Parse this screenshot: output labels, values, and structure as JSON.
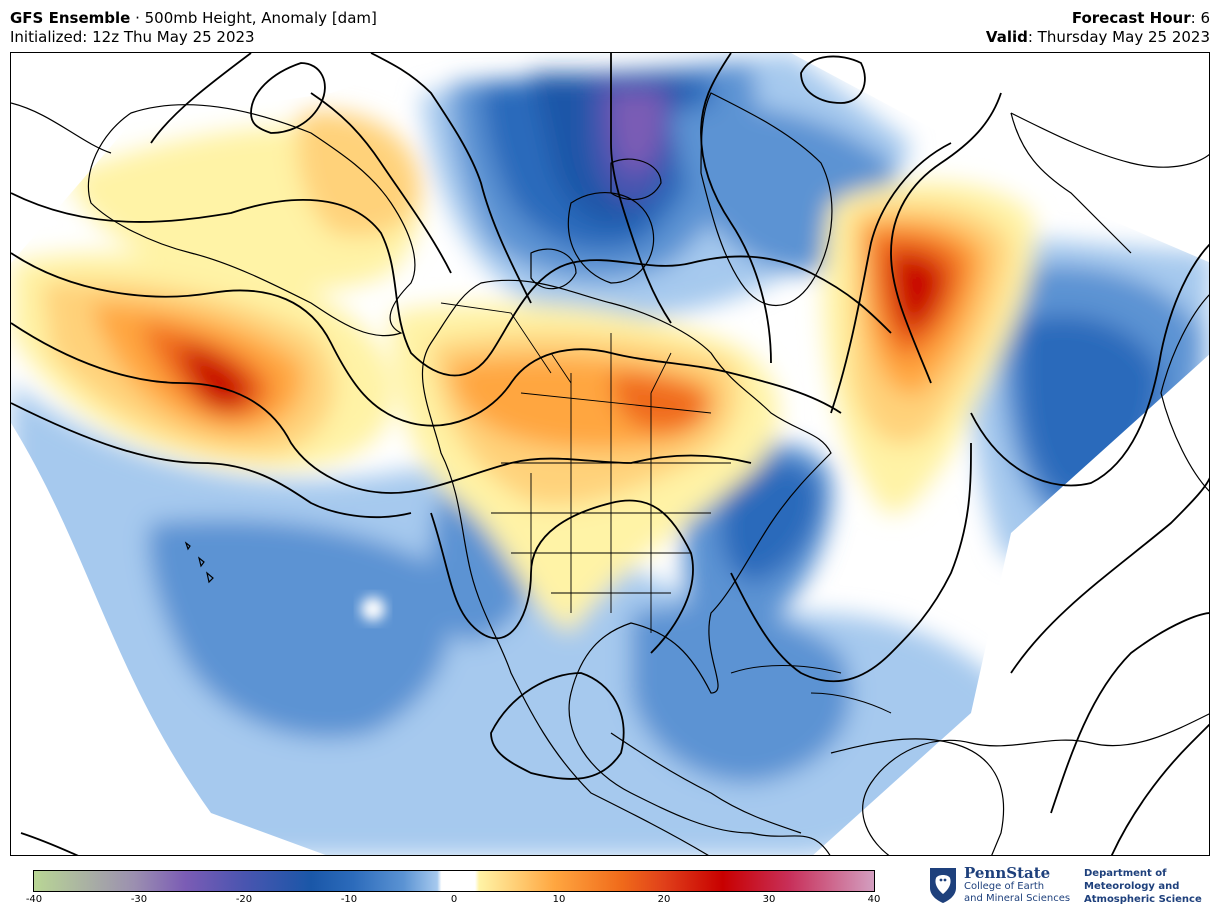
{
  "header": {
    "model_bold": "GFS Ensemble",
    "product": " · 500mb Height, Anomaly [dam]",
    "init": "Initialized: 12z Thu May 25 2023",
    "fh_label": "Forecast Hour",
    "fh_value": ": 6",
    "valid_label": "Valid",
    "valid_value": ": Thursday May 25 2023"
  },
  "colorbar": {
    "min": -40,
    "max": 40,
    "ticks": [
      "-40",
      "-30",
      "-20",
      "-10",
      "0",
      "10",
      "20",
      "30",
      "40"
    ],
    "colors": {
      "m40": "#b9d695",
      "m30": "#9b8fb0",
      "m25": "#7b5cb5",
      "m20": "#4a55b0",
      "m15": "#1a57a8",
      "m10": "#2c6bbb",
      "m5": "#5b93d3",
      "m2": "#a6c9ee",
      "zero": "#ffffff",
      "p2": "#fff3a6",
      "p5": "#ffd27a",
      "p10": "#ffa640",
      "p15": "#f06a1a",
      "p20": "#e0401a",
      "p25": "#c80000",
      "p30": "#c8305a",
      "p40": "#d39ec0"
    }
  },
  "logo": {
    "name": "PennState",
    "line1": "College of Earth",
    "line2": "and Mineral Sciences",
    "dept1": "Department of",
    "dept2": "Meteorology and",
    "dept3": "Atmospheric Science"
  }
}
